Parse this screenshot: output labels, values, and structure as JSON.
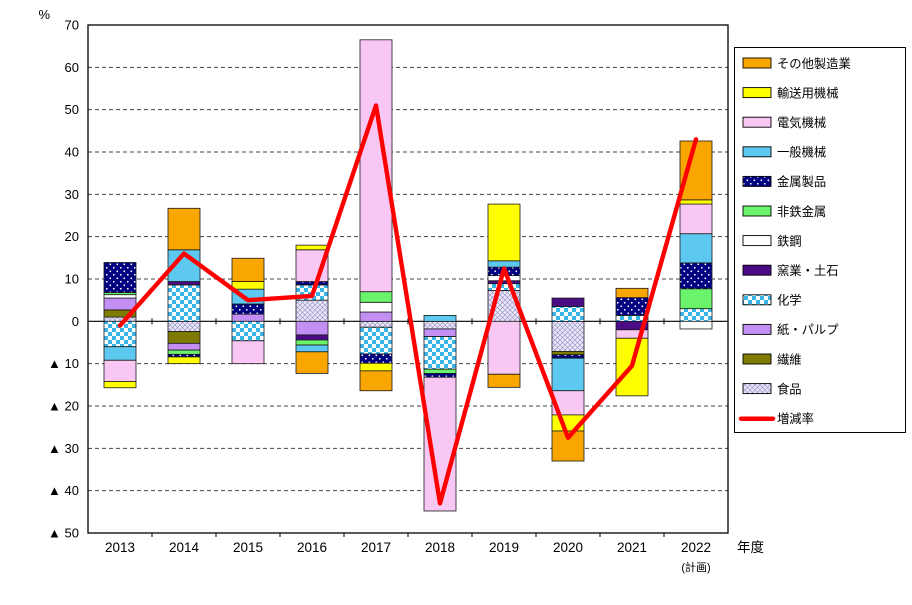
{
  "page": {
    "background": "#FFFFFF"
  },
  "chart_data": {
    "type": "bar",
    "subtype": "stacked-bar-with-line-overlay",
    "unit_label": "%",
    "x_axis_title": "年度",
    "x_last_category_note": "(計画)",
    "categories": [
      "2013",
      "2014",
      "2015",
      "2016",
      "2017",
      "2018",
      "2019",
      "2020",
      "2021",
      "2022"
    ],
    "y_axis": {
      "min": -50,
      "max": 70,
      "step": 10,
      "tick_labels": [
        "70",
        "60",
        "50",
        "40",
        "30",
        "20",
        "10",
        "0",
        "▲ 10",
        "▲ 20",
        "▲ 30",
        "▲ 40",
        "▲ 50"
      ]
    },
    "grid": "horizontal dashed lines every 10 units, solid line at zero",
    "legend_position": "right",
    "stack_order": "bottom-to-top equals reverse of series list",
    "series": [
      {
        "name": "その他製造業",
        "color": "#F9A602",
        "values": [
          0,
          9.8,
          5.5,
          -5.1,
          -4.7,
          0,
          -3.1,
          -7.1,
          2.2,
          13.9
        ]
      },
      {
        "name": "輸送用機械",
        "color": "#FFFF00",
        "values": [
          -1.5,
          -1.6,
          1.8,
          1.1,
          -1.8,
          0,
          13.4,
          -3.8,
          -13.6,
          1.0
        ]
      },
      {
        "name": "電気機械",
        "color": "#F9C7F3",
        "values": [
          -5.0,
          0,
          -5.4,
          7.5,
          59.5,
          -31.6,
          -12.5,
          -5.7,
          -2.0,
          7.0
        ]
      },
      {
        "name": "一般機械",
        "color": "#5EC9F0",
        "values": [
          -3.2,
          7.5,
          3.5,
          -1.6,
          0,
          1.4,
          1.5,
          -7.7,
          0,
          6.9
        ]
      },
      {
        "name": "金属製品",
        "color": "#000080",
        "pattern": "dots",
        "pattern_color": "#FFFFFF",
        "values": [
          7.1,
          -0.6,
          2.4,
          0.8,
          -2.2,
          -0.9,
          2.0,
          -0.8,
          4.2,
          6.1
        ]
      },
      {
        "name": "非鉄金属",
        "color": "#6BF36B",
        "values": [
          0.5,
          -1.0,
          0,
          -1.2,
          2.5,
          -1.0,
          0,
          0,
          0,
          4.7
        ]
      },
      {
        "name": "鉄鋼",
        "color": "#FFFFFF",
        "values": [
          0.8,
          0,
          0,
          0,
          2.3,
          0,
          1.2,
          0,
          0,
          -1.8
        ]
      },
      {
        "name": "窯業・土石",
        "color": "#4B0B85",
        "values": [
          0,
          0.8,
          0,
          -1.2,
          0,
          0,
          0.7,
          2.0,
          -2.0,
          0
        ]
      },
      {
        "name": "化学",
        "color": "#35B5E8",
        "pattern": "checker",
        "pattern_color": "#FFFFFF",
        "values": [
          -6.0,
          8.6,
          -4.6,
          3.6,
          -6.3,
          -7.7,
          1.6,
          3.5,
          1.4,
          3.0
        ]
      },
      {
        "name": "紙・パルプ",
        "color": "#C48FF2",
        "values": [
          2.8,
          -1.6,
          1.7,
          -3.2,
          2.2,
          -1.8,
          0,
          0,
          0,
          0
        ]
      },
      {
        "name": "繊維",
        "color": "#7F7B00",
        "values": [
          1.7,
          -2.8,
          0,
          0,
          0,
          0,
          0,
          -0.8,
          0,
          0
        ]
      },
      {
        "name": "食品",
        "color": "#E9E7F6",
        "pattern": "crosshatch",
        "pattern_color": "#8F8CC5",
        "values": [
          1.0,
          -2.4,
          0,
          5.0,
          -1.4,
          -1.8,
          7.3,
          -7.1,
          0,
          0
        ]
      }
    ],
    "line_series": {
      "name": "増減率",
      "color": "#FF0000",
      "values": [
        -1,
        16,
        5,
        6,
        51,
        -43,
        12.5,
        -27.5,
        -10.5,
        43
      ]
    }
  },
  "legend": {
    "items": [
      "その他製造業",
      "輸送用機械",
      "電気機械",
      "一般機械",
      "金属製品",
      "非鉄金属",
      "鉄鋼",
      "窯業・土石",
      "化学",
      "紙・パルプ",
      "繊維",
      "食品",
      "増減率"
    ]
  }
}
